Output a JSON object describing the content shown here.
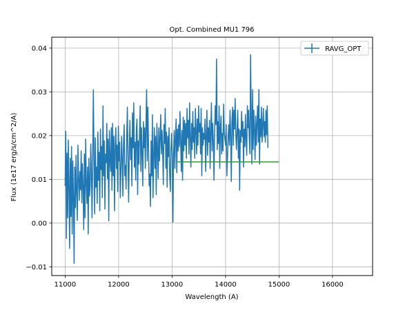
{
  "chart_data": {
    "type": "line",
    "title": "Opt. Combined MU1 796",
    "xlabel": "Wavelength (A)",
    "ylabel": "Flux (1e17 erg/s/cm^2/A)",
    "xlim": [
      10750,
      16750
    ],
    "ylim": [
      -0.012,
      0.0425
    ],
    "xticks": [
      11000,
      12000,
      13000,
      14000,
      15000,
      16000
    ],
    "xtick_labels": [
      "11000",
      "12000",
      "13000",
      "14000",
      "15000",
      "16000"
    ],
    "yticks": [
      -0.01,
      0.0,
      0.01,
      0.02,
      0.03,
      0.04
    ],
    "ytick_labels": [
      "−0.01",
      "0.00",
      "0.01",
      "0.02",
      "0.03",
      "0.04"
    ],
    "grid": true,
    "legend": {
      "position": "top-right",
      "entries": [
        "RAVG_OPT"
      ]
    },
    "series": [
      {
        "name": "RAVG_OPT",
        "color": "#1f77b4",
        "style": "line-with-errorbars",
        "x_start": 11000,
        "x_step": 12,
        "values": [
          0.0085,
          0.021,
          -0.0035,
          0.016,
          0.0012,
          0.019,
          0.0088,
          -0.0058,
          0.0148,
          0.0015,
          0.0175,
          -0.0025,
          0.0142,
          0.0062,
          -0.0092,
          0.0128,
          0.0035,
          0.0155,
          0.0068,
          0.0006,
          0.0178,
          0.0102,
          0.0052,
          0.0118,
          0.0076,
          0.0165,
          0.0046,
          0.0136,
          0.0082,
          -0.0015,
          0.0158,
          0.0012,
          0.0192,
          0.0092,
          0.0045,
          0.0128,
          -0.0025,
          0.0148,
          0.0062,
          0.0085,
          0.0181,
          0.0114,
          0.0012,
          0.0156,
          0.0305,
          0.0142,
          0.0021,
          0.0195,
          0.0082,
          0.0128,
          0.0045,
          0.0208,
          0.0098,
          0.0162,
          0.0028,
          0.0215,
          0.0122,
          0.0175,
          0.0058,
          0.0268,
          0.0108,
          0.0188,
          0.0032,
          0.0158,
          0.0138,
          0.0228,
          0.0102,
          0.0192,
          0.0005,
          0.0212,
          0.0145,
          0.0118,
          0.0218,
          0.0075,
          0.0228,
          0.0108,
          0.0198,
          0.0028,
          0.0168,
          0.0218,
          0.0125,
          0.0178,
          0.0072,
          0.0222,
          0.0142,
          0.0185,
          0.0058,
          0.0118,
          0.0198,
          0.0145,
          0.0062,
          0.0182,
          0.0225,
          0.0108,
          0.0132,
          0.0078,
          0.0198,
          0.0265,
          0.0138,
          0.0048,
          0.0172,
          0.0235,
          0.0145,
          0.0195,
          0.0085,
          0.0252,
          0.0172,
          0.0275,
          0.0128,
          0.0185,
          0.0098,
          0.0215,
          0.0238,
          0.0065,
          0.0188,
          0.0135,
          0.0205,
          0.0268,
          0.0118,
          0.0218,
          0.0162,
          0.0085,
          0.0232,
          0.0172,
          0.0218,
          0.0125,
          0.0225,
          0.0305,
          0.0142,
          0.0265,
          0.0175,
          0.0085,
          0.0112,
          0.0038,
          0.0188,
          0.0108,
          0.0248,
          0.0058,
          0.0152,
          0.0218,
          0.0125,
          0.0198,
          0.0065,
          0.0228,
          0.0172,
          0.0102,
          0.0218,
          0.0142,
          0.0195,
          0.0248,
          0.0158,
          0.0212,
          0.0168,
          0.0088,
          0.0225,
          0.0182,
          0.0262,
          0.0125,
          0.0208,
          0.0082,
          0.0198,
          0.0152,
          0.0218,
          0.0108,
          0.0072,
          0.0168,
          0.0205,
          0.0155,
          0.0002,
          0.0158,
          0.0212,
          0.0125,
          0.0198,
          0.0238,
          0.0115,
          0.0215,
          0.0165,
          0.0225,
          0.0175,
          0.0255,
          0.0188,
          0.0118,
          0.0212,
          0.0098,
          0.0242,
          0.0165,
          0.0235,
          0.0178,
          0.0228,
          0.0148,
          0.0262,
          0.0195,
          0.0235,
          0.0158,
          0.0275,
          0.0195,
          0.0128,
          0.0228,
          0.0168,
          0.0255,
          0.0185,
          0.0218,
          0.0148,
          0.0262,
          0.0212,
          0.0158,
          0.0238,
          0.0178,
          0.0268,
          0.0208,
          0.0228,
          0.0158,
          0.0262,
          0.0108,
          0.0218,
          0.0178,
          0.0205,
          0.0192,
          0.0238,
          0.0118,
          0.0198,
          0.0258,
          0.0155,
          0.0218,
          0.0185,
          0.0235,
          0.0125,
          0.0212,
          0.0275,
          0.0165,
          0.0228,
          0.0185,
          0.0098,
          0.0212,
          0.0268,
          0.0225,
          0.0375,
          0.0168,
          0.0232,
          0.0182,
          0.0268,
          0.0125,
          0.0218,
          0.0245,
          0.0158,
          0.0205,
          0.0165,
          0.0272,
          0.0208,
          0.0192,
          0.0178,
          0.0225,
          0.0108,
          0.0148,
          0.0195,
          0.0225,
          0.0178,
          0.0258,
          0.0205,
          0.0095,
          0.0232,
          0.0265,
          0.0178,
          0.0258,
          0.0215,
          0.0285,
          0.0205,
          0.0168,
          0.0212,
          0.0258,
          0.0148,
          0.0215,
          0.0075,
          0.0212,
          0.0185,
          0.0255,
          0.0198,
          0.0232,
          0.0128,
          0.0215,
          0.0175,
          0.0248,
          0.0192,
          0.0155,
          0.0268,
          0.0218,
          0.0258,
          0.0195,
          0.0158,
          0.0385,
          0.0245,
          0.0135,
          0.0305,
          0.0168,
          0.0258,
          0.0215,
          0.0145,
          0.0245,
          0.0178,
          0.0228,
          0.0268,
          0.0185,
          0.0305,
          0.0135,
          0.0238,
          0.0198,
          0.0265,
          0.0185,
          0.0225,
          0.0262,
          0.0198,
          0.0232,
          0.0185,
          0.0258,
          0.0202,
          0.0268,
          0.0172
        ]
      },
      {
        "name": "",
        "color": "#2ca02c",
        "style": "line",
        "x": [
          13100,
          15000
        ],
        "values": [
          0.014,
          0.014
        ]
      }
    ]
  }
}
